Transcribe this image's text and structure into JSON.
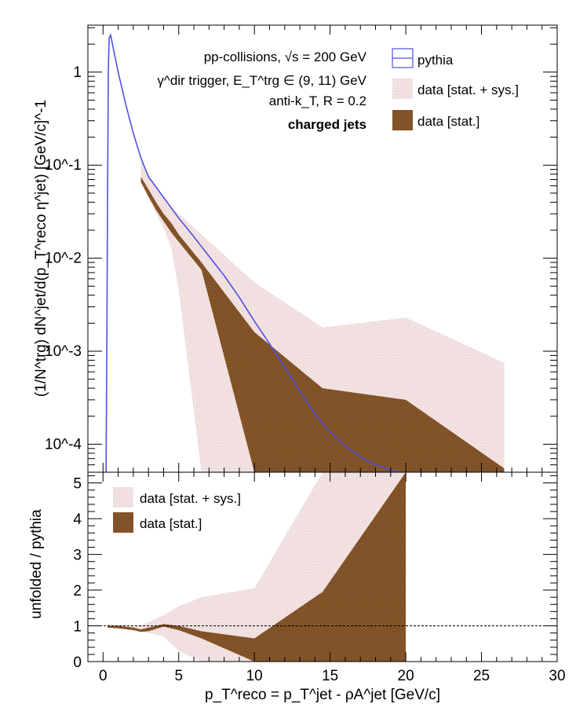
{
  "chart_data": [
    {
      "type": "area",
      "panel": "top",
      "ylabel": "(1/N^trg) dN^jet/d(p_T^reco η^jet) [GeV/c]^-1",
      "xlim": [
        -1,
        30
      ],
      "ylim": [
        5e-05,
        3.2
      ],
      "yscale": "log",
      "y_tick_labels": [
        "10^-4",
        "10^-3",
        "10^-2",
        "10^-1",
        "1"
      ],
      "x_tick_labels": [
        "0",
        "5",
        "10",
        "15",
        "20",
        "25",
        "30"
      ],
      "annotations": {
        "line1": "pp-collisions, √s = 200 GeV",
        "line2": "γ^dir trigger, E_T^trg ∈ (9, 11) GeV",
        "line3": "anti-k_T, R = 0.2",
        "line4": "charged jets"
      },
      "legend": {
        "placement": "top-right",
        "pythia": "pythia",
        "sys": "data [stat. + sys.]",
        "stat": "data [stat.]"
      },
      "series": [
        {
          "name": "pythia",
          "color": "#5050e6",
          "x": [
            0.2,
            0.25,
            0.3,
            0.35,
            0.4,
            0.5,
            1.0,
            1.5,
            2.0,
            2.5,
            3,
            4,
            5,
            6,
            7,
            8,
            9,
            10,
            11,
            12,
            13,
            14,
            15,
            16,
            17,
            18,
            19,
            20
          ],
          "y": [
            5e-05,
            0.001,
            0.05,
            1.0,
            2.3,
            2.5,
            1.0,
            0.45,
            0.22,
            0.12,
            0.075,
            0.045,
            0.027,
            0.017,
            0.0105,
            0.0065,
            0.0038,
            0.0021,
            0.0012,
            0.00067,
            0.00037,
            0.00021,
            0.000135,
            9.5e-05,
            7.3e-05,
            6e-05,
            5.3e-05,
            4.8e-05
          ]
        },
        {
          "name": "data [stat. + sys.]",
          "color": "#f0dcdc",
          "x": [
            2.5,
            3,
            3.5,
            4,
            4.5,
            5,
            6.5,
            10,
            14.5,
            20,
            26.5
          ],
          "upper": [
            0.12,
            0.08,
            0.06,
            0.045,
            0.035,
            0.03,
            0.018,
            0.0055,
            0.0018,
            0.0023,
            0.00075
          ],
          "lower": [
            0.065,
            0.045,
            0.03,
            0.021,
            0.013,
            0.0045,
            5e-05,
            5e-05,
            5e-05,
            5e-05,
            5e-05
          ]
        },
        {
          "name": "data [stat.]",
          "color": "#8b5a2b",
          "x": [
            2.5,
            3,
            3.5,
            4,
            4.5,
            5,
            6.5,
            10,
            14.5,
            20,
            26.5
          ],
          "upper": [
            0.075,
            0.055,
            0.04,
            0.03,
            0.024,
            0.018,
            0.009,
            0.0016,
            0.0004,
            0.0003,
            5.5e-05
          ],
          "lower": [
            0.066,
            0.046,
            0.033,
            0.025,
            0.019,
            0.015,
            0.0075,
            5e-05,
            5e-05,
            5e-05,
            5e-05
          ]
        }
      ]
    },
    {
      "type": "area",
      "panel": "bottom",
      "xlabel": "p_T^reco = p_T^jet - ρA^jet [GeV/c]",
      "ylabel": "unfolded / pythia",
      "xlim": [
        -1,
        30
      ],
      "ylim": [
        0,
        5.3
      ],
      "y_tick_labels": [
        "0",
        "1",
        "2",
        "3",
        "4",
        "5"
      ],
      "reference_line": 1,
      "legend": {
        "placement": "top-left",
        "sys": "data [stat. + sys.]",
        "stat": "data [stat.]"
      },
      "series": [
        {
          "name": "data [stat. + sys.]",
          "color": "#f0dcdc",
          "x": [
            0.3,
            1,
            2,
            2.5,
            3,
            4,
            5,
            6.5,
            10,
            14.5,
            20
          ],
          "upper": [
            1.05,
            1.02,
            1.0,
            1.02,
            1.1,
            1.3,
            1.55,
            1.8,
            2.05,
            5.3,
            5.3
          ],
          "lower": [
            0.95,
            0.93,
            0.9,
            0.85,
            0.8,
            0.7,
            0.3,
            0,
            0,
            0,
            0
          ]
        },
        {
          "name": "data [stat.]",
          "color": "#8b5a2b",
          "x": [
            0.3,
            1,
            2,
            2.5,
            3,
            4,
            5,
            6.5,
            10,
            14.5,
            20
          ],
          "upper": [
            1.0,
            1.0,
            0.95,
            0.9,
            0.95,
            1.05,
            1.0,
            0.85,
            0.65,
            1.95,
            5.3
          ],
          "lower": [
            0.95,
            0.93,
            0.88,
            0.83,
            0.85,
            0.98,
            0.88,
            0.65,
            0,
            0,
            0
          ]
        }
      ]
    }
  ]
}
